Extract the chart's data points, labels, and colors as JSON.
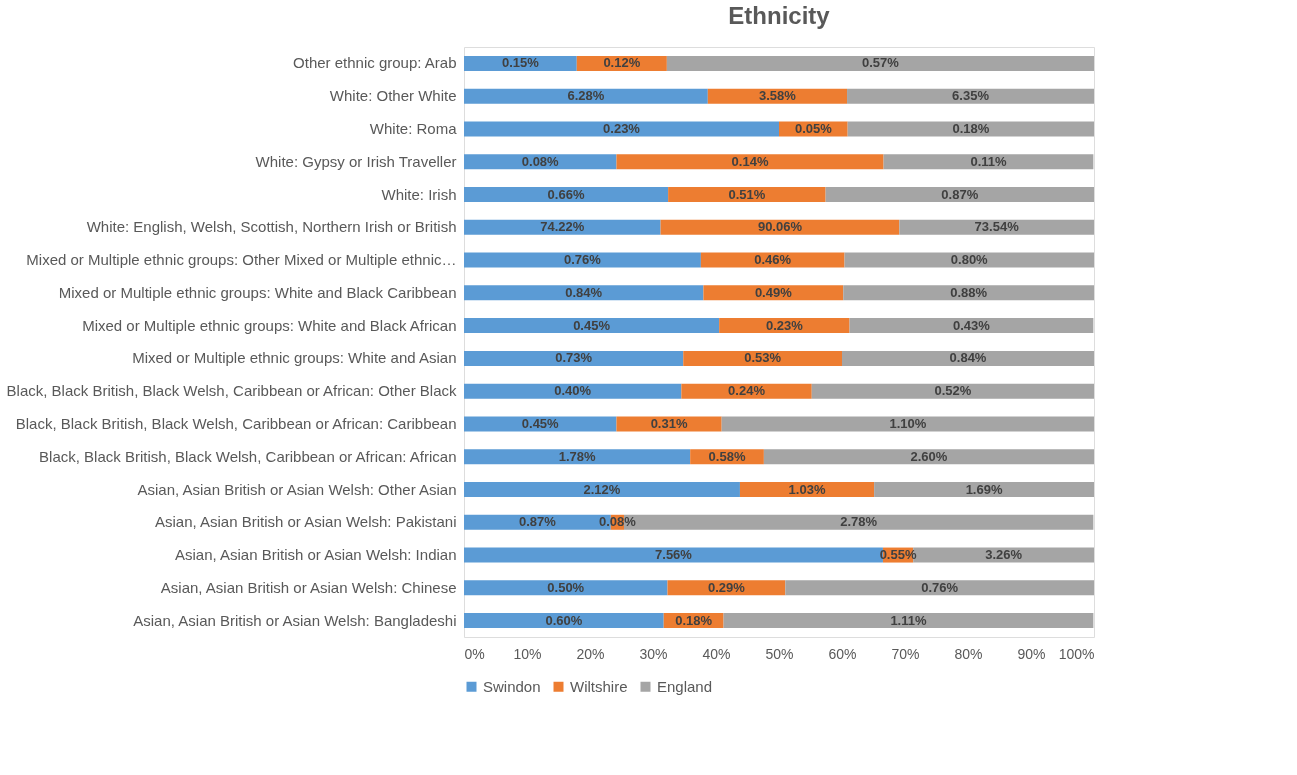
{
  "chart_data": {
    "type": "bar",
    "title": "Ethnicity",
    "orientation": "horizontal",
    "stacked": true,
    "legend": "bottom",
    "grid": false,
    "categories": [
      "Other ethnic group: Arab",
      "White: Other White",
      "White: Roma",
      "White: Gypsy or Irish Traveller",
      "White: Irish",
      "White: English, Welsh, Scottish, Northern Irish or British",
      "Mixed or Multiple ethnic groups: Other Mixed or Multiple ethnic…",
      "Mixed or Multiple ethnic groups: White and Black Caribbean",
      "Mixed or Multiple ethnic groups: White and Black African",
      "Mixed or Multiple ethnic groups: White and Asian",
      "Black, Black British, Black Welsh, Caribbean or African: Other Black",
      "Black, Black British, Black Welsh, Caribbean or African: Caribbean",
      "Black, Black British, Black Welsh, Caribbean or African: African",
      "Asian, Asian British or Asian Welsh: Other Asian",
      "Asian, Asian British or Asian Welsh: Pakistani",
      "Asian, Asian British or Asian Welsh: Indian",
      "Asian, Asian British or Asian Welsh: Chinese",
      "Asian, Asian British or Asian Welsh: Bangladeshi"
    ],
    "xlim": [
      0,
      100
    ],
    "xticks": [
      {
        "value": 0,
        "label": "0%"
      },
      {
        "value": 10,
        "label": "10%"
      },
      {
        "value": 20,
        "label": "20%"
      },
      {
        "value": 30,
        "label": "30%"
      },
      {
        "value": 40,
        "label": "40%"
      },
      {
        "value": 50,
        "label": "50%"
      },
      {
        "value": 60,
        "label": "60%"
      },
      {
        "value": 70,
        "label": "70%"
      },
      {
        "value": 80,
        "label": "80%"
      },
      {
        "value": 90,
        "label": "90%"
      },
      {
        "value": 100,
        "label": "100%"
      }
    ],
    "series": [
      {
        "name": "Swindon",
        "color": "#5b9bd5",
        "values": [
          17.9,
          38.7,
          50.0,
          24.2,
          32.4,
          31.2,
          37.6,
          38.0,
          40.5,
          34.8,
          34.5,
          24.2,
          35.9,
          43.8,
          23.3,
          66.5,
          32.3,
          31.7
        ]
      },
      {
        "name": "Wiltshire",
        "color": "#ed7d31",
        "values": [
          14.3,
          22.1,
          10.9,
          42.4,
          25.0,
          37.9,
          22.8,
          22.2,
          20.7,
          25.2,
          20.7,
          16.7,
          11.7,
          21.3,
          2.1,
          4.8,
          18.7,
          9.5
        ]
      },
      {
        "name": "England",
        "color": "#a5a5a5",
        "values": [
          67.8,
          39.2,
          39.1,
          33.3,
          42.6,
          30.9,
          39.6,
          39.8,
          38.7,
          40.0,
          44.8,
          59.1,
          52.4,
          34.9,
          74.5,
          28.7,
          49.0,
          58.7
        ]
      }
    ],
    "annotations": [
      "0.15%",
      "0.12%",
      "0.57%",
      "6.28%",
      "3.58%",
      "6.35%",
      "0.23%",
      "0.05%",
      "0.18%",
      "0.08%",
      "0.14%",
      "0.11%",
      "0.66%",
      "0.51%",
      "0.87%",
      "74.22%",
      "90.06%",
      "73.54%",
      "0.76%",
      "0.46%",
      "0.80%",
      "0.84%",
      "0.49%",
      "0.88%",
      "0.45%",
      "0.23%",
      "0.43%",
      "0.73%",
      "0.53%",
      "0.84%",
      "0.40%",
      "0.24%",
      "0.52%",
      "0.45%",
      "0.31%",
      "1.10%",
      "1.78%",
      "0.58%",
      "2.60%",
      "2.12%",
      "1.03%",
      "1.69%",
      "0.87%",
      "0.08%",
      "2.78%",
      "7.56%",
      "0.55%",
      "3.26%",
      "0.50%",
      "0.29%",
      "0.76%",
      "0.60%",
      "0.18%",
      "1.11%"
    ]
  }
}
